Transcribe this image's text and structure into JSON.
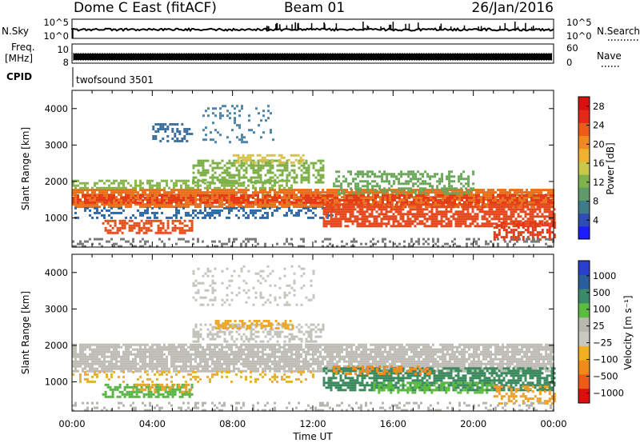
{
  "header": {
    "station": "Dome C East (fitACF)",
    "beam": "Beam 01",
    "date": "26/Jan/2016"
  },
  "side_labels": {
    "nsky": "N.Sky",
    "freq_line1": "Freq.",
    "freq_line2": "[MHz]",
    "cpid": "CPID",
    "nsearch": "N.Search",
    "nave": "Nave",
    "nsky_ticks": [
      "10^5",
      "10^0"
    ],
    "nsearch_ticks": [
      "10^5",
      "10^0"
    ],
    "freq_ticks": [
      "10",
      "8"
    ],
    "nave_ticks": [
      "60",
      "0"
    ]
  },
  "cpid_value": "twofsound 3501",
  "chart_data": [
    {
      "type": "heatmap",
      "name": "power-panel",
      "ylabel": "Slant Range [km]",
      "ylim": [
        200,
        4500
      ],
      "y_ticks": [
        1000,
        2000,
        3000,
        4000
      ],
      "colorbar": {
        "label": "Power [dB]",
        "ticks": [
          "4",
          "8",
          "12",
          "16",
          "20",
          "24",
          "28"
        ],
        "colors": [
          "#1c1cff",
          "#2e4eb3",
          "#3f7c8a",
          "#5f9a6a",
          "#7fb24a",
          "#c8c84a",
          "#f0b030",
          "#f08a20",
          "#ee5a18",
          "#e62818",
          "#dd1010"
        ]
      },
      "bands": [
        {
          "start": 0.0,
          "end": 24.0,
          "lo": 1300,
          "hi": 1800,
          "color": "#e8701c",
          "density": 0.85
        },
        {
          "start": 0.0,
          "end": 24.0,
          "lo": 1450,
          "hi": 1650,
          "color": "#e43a18",
          "density": 0.55
        },
        {
          "start": 0.0,
          "end": 11.0,
          "lo": 1800,
          "hi": 2050,
          "color": "#86b64c",
          "density": 0.6
        },
        {
          "start": 0.0,
          "end": 13.0,
          "lo": 1000,
          "hi": 1300,
          "color": "#2f6aa8",
          "density": 0.35
        },
        {
          "start": 1.5,
          "end": 6.0,
          "lo": 600,
          "hi": 950,
          "color": "#e4501c",
          "density": 0.6
        },
        {
          "start": 6.0,
          "end": 12.5,
          "lo": 2000,
          "hi": 2600,
          "color": "#7eb04a",
          "density": 0.55
        },
        {
          "start": 8.0,
          "end": 11.5,
          "lo": 2500,
          "hi": 2750,
          "color": "#d8c04a",
          "density": 0.5
        },
        {
          "start": 12.5,
          "end": 24.0,
          "lo": 800,
          "hi": 1400,
          "color": "#e4481c",
          "density": 0.75
        },
        {
          "start": 13.0,
          "end": 20.0,
          "lo": 1700,
          "hi": 2300,
          "color": "#6aa65a",
          "density": 0.45
        },
        {
          "start": 21.0,
          "end": 24.0,
          "lo": 400,
          "hi": 900,
          "color": "#e23a18",
          "density": 0.55
        },
        {
          "start": 0.0,
          "end": 24.0,
          "lo": 250,
          "hi": 450,
          "color": "#7a7a7a",
          "density": 0.25
        },
        {
          "start": 4.0,
          "end": 6.0,
          "lo": 3100,
          "hi": 3600,
          "color": "#3c6ea0",
          "density": 0.35
        },
        {
          "start": 6.5,
          "end": 10.0,
          "lo": 3100,
          "hi": 4100,
          "color": "#4f86a8",
          "density": 0.18
        }
      ]
    },
    {
      "type": "heatmap",
      "name": "velocity-panel",
      "xlabel": "Time UT",
      "ylabel": "Slant Range [km]",
      "ylim": [
        200,
        4500
      ],
      "y_ticks": [
        1000,
        2000,
        3000,
        4000
      ],
      "x_ticks": [
        "00:00",
        "04:00",
        "08:00",
        "12:00",
        "16:00",
        "20:00",
        "00:00"
      ],
      "xlim": [
        0,
        24
      ],
      "colorbar": {
        "label": "Velocity  [m s⁻¹]",
        "ticks": [
          "1000",
          "500",
          "100",
          "25",
          "−25",
          "−100",
          "−500",
          "−1000"
        ],
        "colors": [
          "#2a3fd0",
          "#2a5e9a",
          "#3a8a6a",
          "#5cbc40",
          "#b8b8b0",
          "#c8c8c0",
          "#f0b020",
          "#f08a18",
          "#ee5a18",
          "#dd1010"
        ]
      },
      "bands": [
        {
          "start": 0.0,
          "end": 24.0,
          "lo": 1300,
          "hi": 2050,
          "color": "#bdbdb5",
          "density": 0.85
        },
        {
          "start": 1.5,
          "end": 6.0,
          "lo": 600,
          "hi": 950,
          "color": "#58b444",
          "density": 0.55
        },
        {
          "start": 3.0,
          "end": 6.0,
          "lo": 700,
          "hi": 950,
          "color": "#e8a428",
          "density": 0.35
        },
        {
          "start": 0.0,
          "end": 12.0,
          "lo": 1000,
          "hi": 1300,
          "color": "#e8b030",
          "density": 0.25
        },
        {
          "start": 6.0,
          "end": 12.5,
          "lo": 2100,
          "hi": 2600,
          "color": "#c2c2ba",
          "density": 0.45
        },
        {
          "start": 7.0,
          "end": 11.0,
          "lo": 2500,
          "hi": 2700,
          "color": "#eca82a",
          "density": 0.45
        },
        {
          "start": 12.5,
          "end": 24.0,
          "lo": 800,
          "hi": 1400,
          "color": "#3a8a5e",
          "density": 0.7
        },
        {
          "start": 13.0,
          "end": 18.0,
          "lo": 1200,
          "hi": 1450,
          "color": "#ee8c20",
          "density": 0.45
        },
        {
          "start": 15.0,
          "end": 21.0,
          "lo": 700,
          "hi": 1000,
          "color": "#5cbc40",
          "density": 0.45
        },
        {
          "start": 21.0,
          "end": 24.0,
          "lo": 400,
          "hi": 900,
          "color": "#f0a028",
          "density": 0.45
        },
        {
          "start": 0.0,
          "end": 24.0,
          "lo": 250,
          "hi": 450,
          "color": "#b5b5ad",
          "density": 0.25
        },
        {
          "start": 6.0,
          "end": 12.0,
          "lo": 3100,
          "hi": 4200,
          "color": "#c5c5bd",
          "density": 0.15
        }
      ]
    }
  ]
}
